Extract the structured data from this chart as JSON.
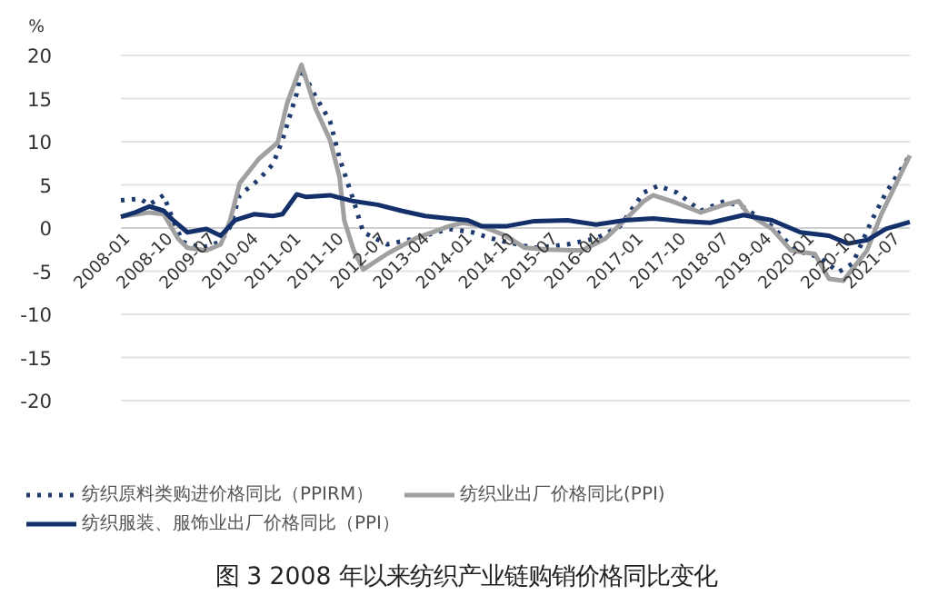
{
  "chart_data": {
    "type": "line",
    "title": "图 3  2008 年以来纺织产业链购销价格同比变化",
    "ylabel": "%",
    "xlim": [
      "2008-01",
      "2021-11"
    ],
    "ylim": [
      -20,
      20
    ],
    "yticks": [
      -20,
      -15,
      -10,
      -5,
      0,
      5,
      10,
      15,
      20
    ],
    "xticks": [
      "2008-01",
      "2008-10",
      "2009-07",
      "2010-04",
      "2011-01",
      "2011-10",
      "2012-07",
      "2013-04",
      "2014-01",
      "2014-10",
      "2015-07",
      "2016-04",
      "2017-01",
      "2017-10",
      "2018-07",
      "2019-04",
      "2020-01",
      "2020-10",
      "2021-07"
    ],
    "grid": "y",
    "legend": "bottom",
    "marker": "none",
    "series": [
      {
        "name": "纺织原料类购进价格同比（PPIRM）",
        "color": "#1f3a6e",
        "line_style": "dotted",
        "x": [
          "2008-01",
          "2008-05",
          "2008-07",
          "2008-10",
          "2008-12",
          "2009-02",
          "2009-06",
          "2009-10",
          "2009-12",
          "2010-02",
          "2010-06",
          "2010-09",
          "2010-11",
          "2011-02",
          "2011-03",
          "2011-06",
          "2011-09",
          "2011-11",
          "2012-02",
          "2012-04",
          "2012-09",
          "2013-03",
          "2013-10",
          "2014-03",
          "2014-07",
          "2014-10",
          "2015-04",
          "2015-11",
          "2016-05",
          "2016-10",
          "2017-03",
          "2017-06",
          "2017-10",
          "2018-03",
          "2018-08",
          "2018-12",
          "2019-06",
          "2019-11",
          "2020-04",
          "2020-08",
          "2020-11",
          "2021-03",
          "2021-06",
          "2021-11"
        ],
        "values": [
          3.2,
          3.4,
          2.7,
          3.8,
          0.9,
          -1.6,
          -2.3,
          -1.6,
          0.2,
          3.8,
          5.6,
          7.4,
          10.2,
          15.6,
          18.4,
          15.2,
          12.4,
          8.1,
          3.1,
          -0.5,
          -1.9,
          -1.2,
          -0.1,
          -0.5,
          -1.2,
          -1.6,
          -2.3,
          -1.9,
          -1.2,
          0.2,
          4.1,
          4.9,
          4.1,
          2.0,
          3.1,
          2.4,
          0.2,
          -2.6,
          -3.4,
          -5.1,
          -4.1,
          0.9,
          4.1,
          8.4
        ]
      },
      {
        "name": "纺织业出厂价格同比(PPI)",
        "color": "#a0a0a0",
        "line_style": "solid",
        "x": [
          "2008-01",
          "2008-07",
          "2008-10",
          "2009-01",
          "2009-03",
          "2009-07",
          "2009-10",
          "2009-12",
          "2010-02",
          "2010-06",
          "2010-10",
          "2010-12",
          "2011-03",
          "2011-06",
          "2011-09",
          "2011-11",
          "2011-12",
          "2012-02",
          "2012-04",
          "2012-09",
          "2013-03",
          "2013-10",
          "2014-01",
          "2014-05",
          "2014-10",
          "2015-02",
          "2015-07",
          "2016-02",
          "2016-07",
          "2016-11",
          "2017-03",
          "2017-05",
          "2017-09",
          "2018-03",
          "2018-08",
          "2018-11",
          "2019-01",
          "2019-06",
          "2019-10",
          "2020-03",
          "2020-06",
          "2020-09",
          "2021-02",
          "2021-05",
          "2021-11"
        ],
        "values": [
          1.3,
          1.8,
          1.6,
          -1.2,
          -2.3,
          -2.6,
          -1.9,
          0.9,
          5.2,
          8.0,
          9.9,
          14.5,
          18.9,
          13.8,
          10.2,
          5.9,
          0.9,
          -2.6,
          -4.8,
          -3.0,
          -1.2,
          0.2,
          0.6,
          0.2,
          -0.9,
          -2.3,
          -2.5,
          -2.6,
          -1.2,
          0.9,
          3.1,
          3.8,
          3.1,
          1.8,
          2.7,
          3.1,
          1.6,
          -0.1,
          -2.6,
          -3.0,
          -5.9,
          -6.1,
          -2.6,
          1.6,
          8.4
        ]
      },
      {
        "name": "纺织服装、服饰业出厂价格同比（PPI）",
        "color": "#13306a",
        "line_style": "solid",
        "x": [
          "2008-01",
          "2008-04",
          "2008-07",
          "2008-10",
          "2008-12",
          "2009-03",
          "2009-07",
          "2009-10",
          "2010-01",
          "2010-05",
          "2010-09",
          "2010-11",
          "2011-02",
          "2011-04",
          "2011-09",
          "2012-02",
          "2012-07",
          "2012-12",
          "2013-05",
          "2013-10",
          "2014-02",
          "2014-05",
          "2014-10",
          "2015-04",
          "2015-11",
          "2016-05",
          "2016-11",
          "2017-05",
          "2017-11",
          "2018-05",
          "2018-12",
          "2019-06",
          "2019-12",
          "2020-06",
          "2020-10",
          "2021-02",
          "2021-06",
          "2021-11"
        ],
        "values": [
          1.3,
          1.8,
          2.5,
          2.0,
          0.9,
          -0.5,
          -0.1,
          -0.9,
          0.9,
          1.6,
          1.4,
          1.6,
          3.9,
          3.6,
          3.8,
          3.1,
          2.7,
          2.0,
          1.4,
          1.1,
          0.9,
          0.2,
          0.2,
          0.8,
          0.9,
          0.4,
          0.9,
          1.1,
          0.8,
          0.6,
          1.5,
          0.9,
          -0.5,
          -0.9,
          -1.8,
          -1.4,
          -0.1,
          0.7
        ]
      }
    ]
  }
}
